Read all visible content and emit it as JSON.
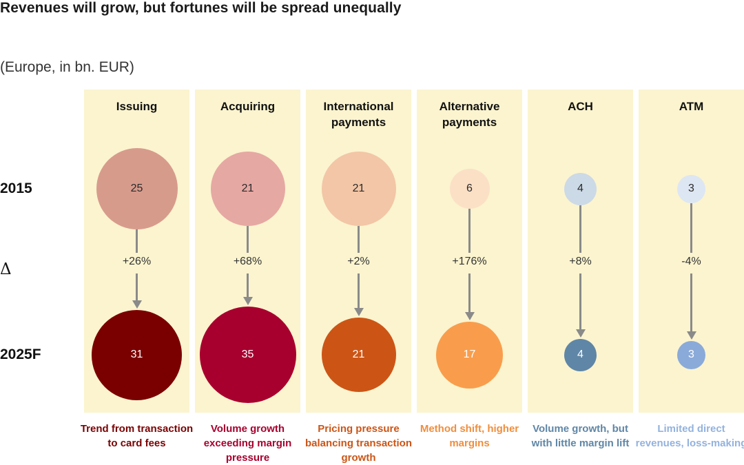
{
  "title": "Revenues will grow, but fortunes will be spread unequally",
  "subtitle": "(Europe, in bn. EUR)",
  "row_labels": {
    "y2015": "2015",
    "delta": "Δ",
    "y2025": "2025F"
  },
  "colors": {
    "column_bg": "#fbf4cf",
    "connector": "#8a8a8a"
  },
  "chart_data": {
    "type": "bubble",
    "title": "Revenues will grow, but fortunes will be spread unequally",
    "subtitle": "(Europe, in bn. EUR)",
    "series_labels": [
      "2015",
      "Δ",
      "2025F"
    ],
    "categories": [
      {
        "name": "Issuing",
        "v2015": 25,
        "v2015_label": "25",
        "change": "+26%",
        "v2025": 31,
        "v2025_label": "31",
        "note": "Trend from transaction to card fees",
        "color2015": "#d79b8c",
        "color2025": "#7a0000",
        "note_color": "#7a0000",
        "text2015": "#2a2a2a",
        "text2025": "#ffffff"
      },
      {
        "name": "Acquiring",
        "v2015": 21,
        "v2015_label": "21",
        "change": "+68%",
        "v2025": 35,
        "v2025_label": "35",
        "note": "Volume growth exceeding margin pressure",
        "color2015": "#e6a8a3",
        "color2025": "#a8002e",
        "note_color": "#a8002e",
        "text2015": "#2a2a2a",
        "text2025": "#ffffff"
      },
      {
        "name": "International payments",
        "v2015": 21,
        "v2015_label": "21",
        "change": "+2%",
        "v2025": 21,
        "v2025_label": "21",
        "note": "Pricing pressure balancing transaction growth",
        "color2015": "#f2c6a6",
        "color2025": "#cc5516",
        "note_color": "#cc5516",
        "text2015": "#2a2a2a",
        "text2025": "#ffffff"
      },
      {
        "name": "Alternative payments",
        "v2015": 6,
        "v2015_label": "6",
        "change": "+176%",
        "v2025": 17,
        "v2025_label": "17",
        "note": "Method shift, higher margins",
        "color2015": "#fbe0c6",
        "color2025": "#f99d4c",
        "note_color": "#f08e3c",
        "text2015": "#2a2a2a",
        "text2025": "#ffffff"
      },
      {
        "name": "ACH",
        "v2015": 4,
        "v2015_label": "4",
        "change": "+8%",
        "v2025": 4,
        "v2025_label": "4",
        "note": "Volume growth, but with little margin lift",
        "color2015": "#ccd9e6",
        "color2025": "#5f86a6",
        "note_color": "#5f86a6",
        "text2015": "#2a2a2a",
        "text2025": "#ffffff"
      },
      {
        "name": "ATM",
        "v2015": 3,
        "v2015_label": "3",
        "change": "-4%",
        "v2025": 3,
        "v2025_label": "3",
        "note": "Limited direct revenues, loss-making",
        "color2015": "#dde6f3",
        "color2025": "#8aaad9",
        "note_color": "#93b2de",
        "text2015": "#2a2a2a",
        "text2025": "#ffffff"
      }
    ]
  }
}
